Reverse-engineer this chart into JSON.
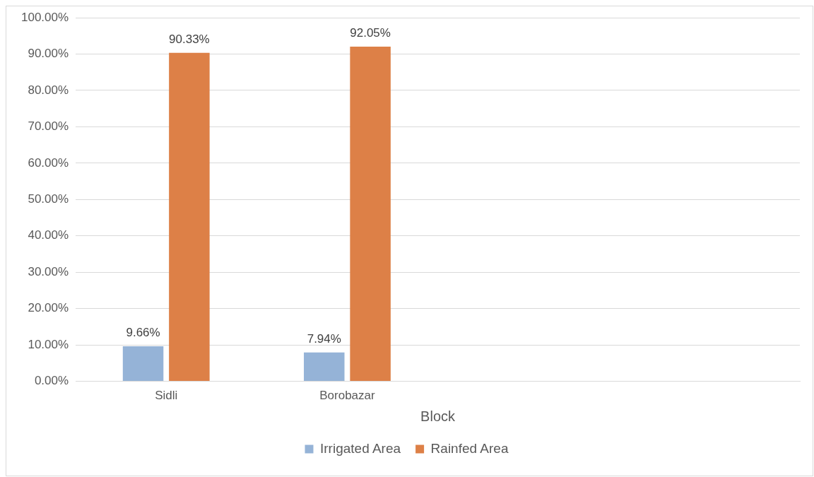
{
  "chart_data": {
    "type": "bar",
    "xlabel": "Block",
    "categories": [
      "Sidli",
      "Borobazar",
      null,
      null
    ],
    "series": [
      {
        "name": "Irrigated Area",
        "color": "#95b3d7",
        "values": [
          9.66,
          7.94,
          null,
          null
        ],
        "value_labels": [
          "9.66%",
          "7.94%",
          null,
          null
        ]
      },
      {
        "name": "Rainfed Area",
        "color": "#dd8047",
        "values": [
          90.33,
          92.05,
          null,
          null
        ],
        "value_labels": [
          "90.33%",
          "92.05%",
          null,
          null
        ]
      }
    ],
    "ylim": [
      0,
      100
    ],
    "yticks": [
      {
        "value": 0,
        "label": "0.00%"
      },
      {
        "value": 10,
        "label": "10.00%"
      },
      {
        "value": 20,
        "label": "20.00%"
      },
      {
        "value": 30,
        "label": "30.00%"
      },
      {
        "value": 40,
        "label": "40.00%"
      },
      {
        "value": 50,
        "label": "50.00%"
      },
      {
        "value": 60,
        "label": "60.00%"
      },
      {
        "value": 70,
        "label": "70.00%"
      },
      {
        "value": 80,
        "label": "80.00%"
      },
      {
        "value": 90,
        "label": "90.00%"
      },
      {
        "value": 100,
        "label": "100.00%"
      }
    ],
    "grid": "y",
    "legend": "bottom"
  }
}
